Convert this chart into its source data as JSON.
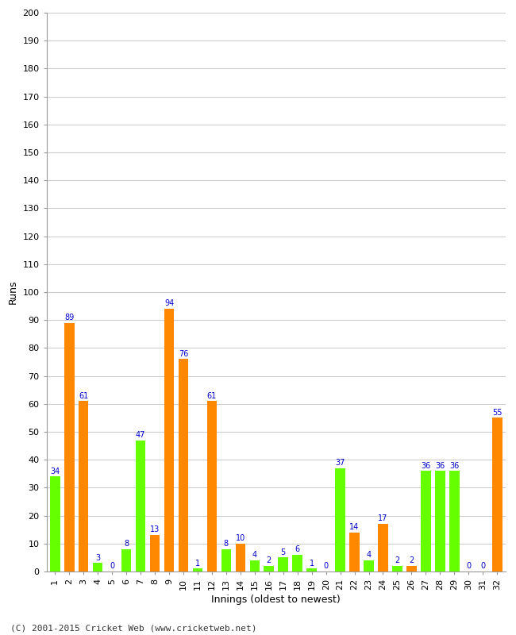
{
  "innings": [
    1,
    2,
    3,
    4,
    5,
    6,
    7,
    8,
    9,
    10,
    11,
    12,
    13,
    14,
    15,
    16,
    17,
    18,
    19,
    20,
    21,
    22,
    23,
    24,
    25,
    26,
    27,
    28,
    29,
    30,
    31,
    32
  ],
  "values": [
    34,
    89,
    61,
    3,
    0,
    8,
    47,
    13,
    94,
    76,
    1,
    61,
    8,
    10,
    4,
    2,
    5,
    6,
    1,
    0,
    37,
    14,
    4,
    17,
    2,
    2,
    36,
    36,
    36,
    0,
    0,
    55
  ],
  "colors": [
    "#66ff00",
    "#ff8800",
    "#ff8800",
    "#66ff00",
    "#ff8800",
    "#66ff00",
    "#66ff00",
    "#ff8800",
    "#ff8800",
    "#ff8800",
    "#66ff00",
    "#ff8800",
    "#66ff00",
    "#ff8800",
    "#66ff00",
    "#66ff00",
    "#66ff00",
    "#66ff00",
    "#66ff00",
    "#66ff00",
    "#66ff00",
    "#ff8800",
    "#66ff00",
    "#ff8800",
    "#66ff00",
    "#ff8800",
    "#66ff00",
    "#66ff00",
    "#66ff00",
    "#ff8800",
    "#66ff00",
    "#ff8800"
  ],
  "xlabel": "Innings (oldest to newest)",
  "ylabel": "Runs",
  "ylim": [
    0,
    200
  ],
  "ytick_step": 10,
  "label_color": "#0000cc",
  "background_color": "#ffffff",
  "grid_color": "#cccccc",
  "footer": "(C) 2001-2015 Cricket Web (www.cricketweb.net)",
  "bar_width": 0.7,
  "label_fontsize": 7,
  "tick_fontsize": 8,
  "xlabel_fontsize": 9,
  "ylabel_fontsize": 9,
  "footer_fontsize": 8
}
